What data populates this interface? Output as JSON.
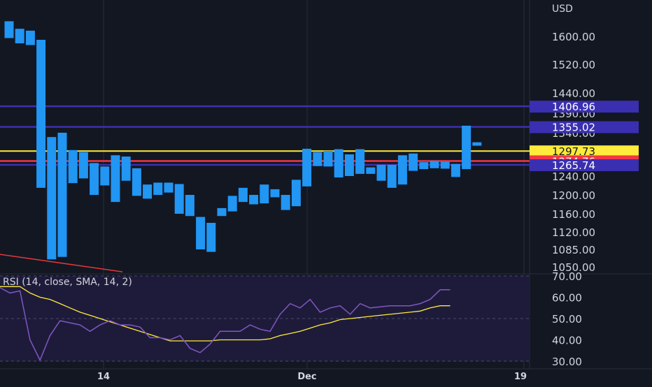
{
  "currency": "USD",
  "indicator_label": "RSI (14, close, SMA, 14, 2)",
  "colors": {
    "background": "#131722",
    "grid": "#2a2e39",
    "candle": "#2196f3",
    "price_axis_text": "#d1d4dc",
    "level_line": "#3f2fae",
    "level_tag": "#3a2fb0",
    "current_price": "#ffeb3b",
    "red_level": "#f23645",
    "trendline": "#e0393e",
    "rsi_line": "#7e57c2",
    "rsi_sma": "#ffeb3b",
    "rsi_band": "#1e1b3a"
  },
  "chart_data": [
    {
      "type": "candlestick",
      "x_tick_labels": [
        "14",
        "Dec",
        "19"
      ],
      "y_tick_labels": [
        "1600.00",
        "1520.00",
        "1440.00",
        "1390.00",
        "1340.00",
        "1240.00",
        "1200.00",
        "1160.00",
        "1120.00",
        "1085.00",
        "1050.00"
      ],
      "price_tags": [
        {
          "label": "1406.96",
          "value": 1406.96,
          "style": "purple"
        },
        {
          "label": "1355.02",
          "value": 1355.02,
          "style": "purple"
        },
        {
          "label": "1297.73",
          "value": 1297.73,
          "style": "yellow"
        },
        {
          "label": "1274.76",
          "value": 1274.76,
          "style": "red"
        },
        {
          "label": "1265.74",
          "value": 1265.74,
          "style": "purple"
        }
      ],
      "candles": [
        [
          1640,
          1595
        ],
        [
          1620,
          1580
        ],
        [
          1615,
          1575
        ],
        [
          1590,
          1215
        ],
        [
          1330,
          1065
        ],
        [
          1340,
          1070
        ],
        [
          1300,
          1225
        ],
        [
          1295,
          1235
        ],
        [
          1270,
          1200
        ],
        [
          1262,
          1220
        ],
        [
          1288,
          1185
        ],
        [
          1285,
          1230
        ],
        [
          1258,
          1198
        ],
        [
          1222,
          1192
        ],
        [
          1226,
          1200
        ],
        [
          1226,
          1205
        ],
        [
          1223,
          1160
        ],
        [
          1200,
          1155
        ],
        [
          1153,
          1085
        ],
        [
          1140,
          1080
        ],
        [
          1172,
          1155
        ],
        [
          1198,
          1165
        ],
        [
          1215,
          1185
        ],
        [
          1200,
          1180
        ],
        [
          1222,
          1182
        ],
        [
          1212,
          1195
        ],
        [
          1200,
          1168
        ],
        [
          1232,
          1176
        ],
        [
          1303,
          1218
        ],
        [
          1295,
          1263
        ],
        [
          1298,
          1262
        ],
        [
          1302,
          1237
        ],
        [
          1290,
          1240
        ],
        [
          1302,
          1245
        ],
        [
          1260,
          1245
        ],
        [
          1266,
          1230
        ],
        [
          1266,
          1215
        ],
        [
          1288,
          1222
        ],
        [
          1292,
          1252
        ],
        [
          1272,
          1256
        ],
        [
          1275,
          1258
        ],
        [
          1273,
          1257
        ],
        [
          1268,
          1238
        ],
        [
          1358,
          1256
        ],
        [
          1318,
          1310
        ]
      ],
      "trendline": {
        "start": 1075,
        "end": 1040
      }
    },
    {
      "type": "line",
      "title": "RSI (14, close, SMA, 14, 2)",
      "y_tick_labels": [
        "70.00",
        "60.00",
        "50.00",
        "40.00",
        "30.00"
      ],
      "ylim": [
        30,
        70
      ],
      "band": [
        30,
        70
      ],
      "series": [
        {
          "role": "rsi",
          "values": [
            64.5,
            62,
            63,
            40,
            30.5,
            42,
            49,
            48,
            47,
            44,
            47,
            49,
            47,
            47,
            46,
            41,
            41,
            40,
            42,
            36,
            34,
            38,
            44,
            44,
            44,
            47,
            45,
            44,
            52,
            57,
            55,
            59,
            53,
            55,
            56,
            52,
            57,
            55,
            55.5,
            56,
            56,
            56,
            57,
            59,
            63.5,
            63.5
          ]
        },
        {
          "role": "sma",
          "values": [
            65,
            65,
            65,
            62,
            60,
            59,
            57,
            55,
            53,
            51.5,
            50,
            48.5,
            47,
            45.5,
            44,
            42.5,
            41,
            39.5,
            39.5,
            39.5,
            39.5,
            39.5,
            40,
            40,
            40,
            40,
            40,
            40.5,
            42,
            43,
            44,
            45.5,
            47,
            48,
            49.5,
            50,
            50.5,
            51,
            51.5,
            52,
            52.5,
            53,
            53.5,
            55,
            56,
            56
          ]
        }
      ]
    }
  ]
}
